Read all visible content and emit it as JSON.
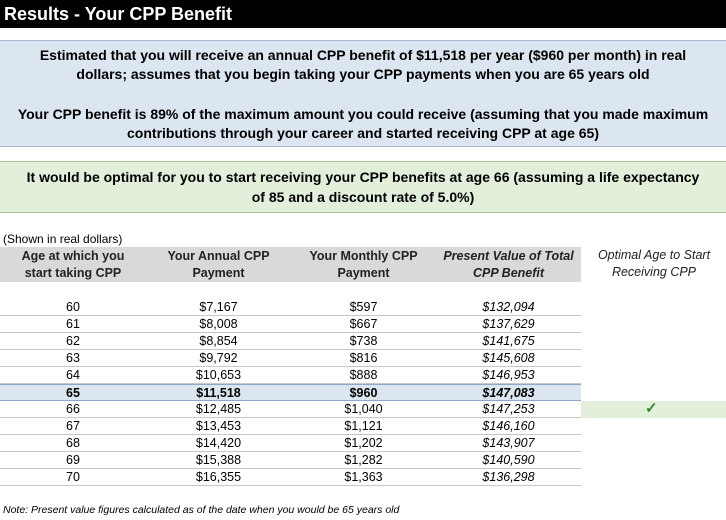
{
  "title": "Results - Your CPP Benefit",
  "summary": {
    "line1": "Estimated that you will receive an annual CPP benefit of $11,518 per year ($960 per month) in real",
    "line2": "dollars; assumes that you begin taking your CPP payments when you are 65 years old",
    "line3": "Your CPP benefit is 89% of the maximum amount you could receive (assuming that you made maximum",
    "line4": "contributions through your career and started receiving CPP at age 65)"
  },
  "optimal": {
    "line1": "It would be optimal for you to start receiving your CPP benefits at age 66 (assuming a life expectancy",
    "line2": "of 85 and a discount rate of 5.0%)"
  },
  "table": {
    "shown_note": "(Shown in real dollars)",
    "headers": {
      "age_l1": "Age at which you",
      "age_l2": "start taking CPP",
      "annual_l1": "Your Annual CPP",
      "annual_l2": "Payment",
      "monthly_l1": "Your Monthly CPP",
      "monthly_l2": "Payment",
      "pv_l1": "Present Value of Total",
      "pv_l2": "CPP Benefit",
      "optimal_l1": "Optimal Age to Start",
      "optimal_l2": "Receiving CPP"
    },
    "rows": [
      {
        "age": "60",
        "annual": "$7,167",
        "monthly": "$597",
        "pv": "$132,094"
      },
      {
        "age": "61",
        "annual": "$8,008",
        "monthly": "$667",
        "pv": "$137,629"
      },
      {
        "age": "62",
        "annual": "$8,854",
        "monthly": "$738",
        "pv": "$141,675"
      },
      {
        "age": "63",
        "annual": "$9,792",
        "monthly": "$816",
        "pv": "$145,608"
      },
      {
        "age": "64",
        "annual": "$10,653",
        "monthly": "$888",
        "pv": "$146,953"
      },
      {
        "age": "65",
        "annual": "$11,518",
        "monthly": "$960",
        "pv": "$147,083"
      },
      {
        "age": "66",
        "annual": "$12,485",
        "monthly": "$1,040",
        "pv": "$147,253"
      },
      {
        "age": "67",
        "annual": "$13,453",
        "monthly": "$1,121",
        "pv": "$146,160"
      },
      {
        "age": "68",
        "annual": "$14,420",
        "monthly": "$1,202",
        "pv": "$143,907"
      },
      {
        "age": "69",
        "annual": "$15,388",
        "monthly": "$1,282",
        "pv": "$140,590"
      },
      {
        "age": "70",
        "annual": "$16,355",
        "monthly": "$1,363",
        "pv": "$136,298"
      }
    ],
    "selected_age": "65",
    "optimal_age": "66",
    "checkmark": "✓"
  },
  "footnote": "Note: Present value figures calculated as of the date when you would be 65 years old",
  "colors": {
    "summary_bg": "#dce6f1",
    "optimal_bg": "#e2efda",
    "header_bg": "#d9d9d9",
    "check": "#2e8b2e"
  }
}
